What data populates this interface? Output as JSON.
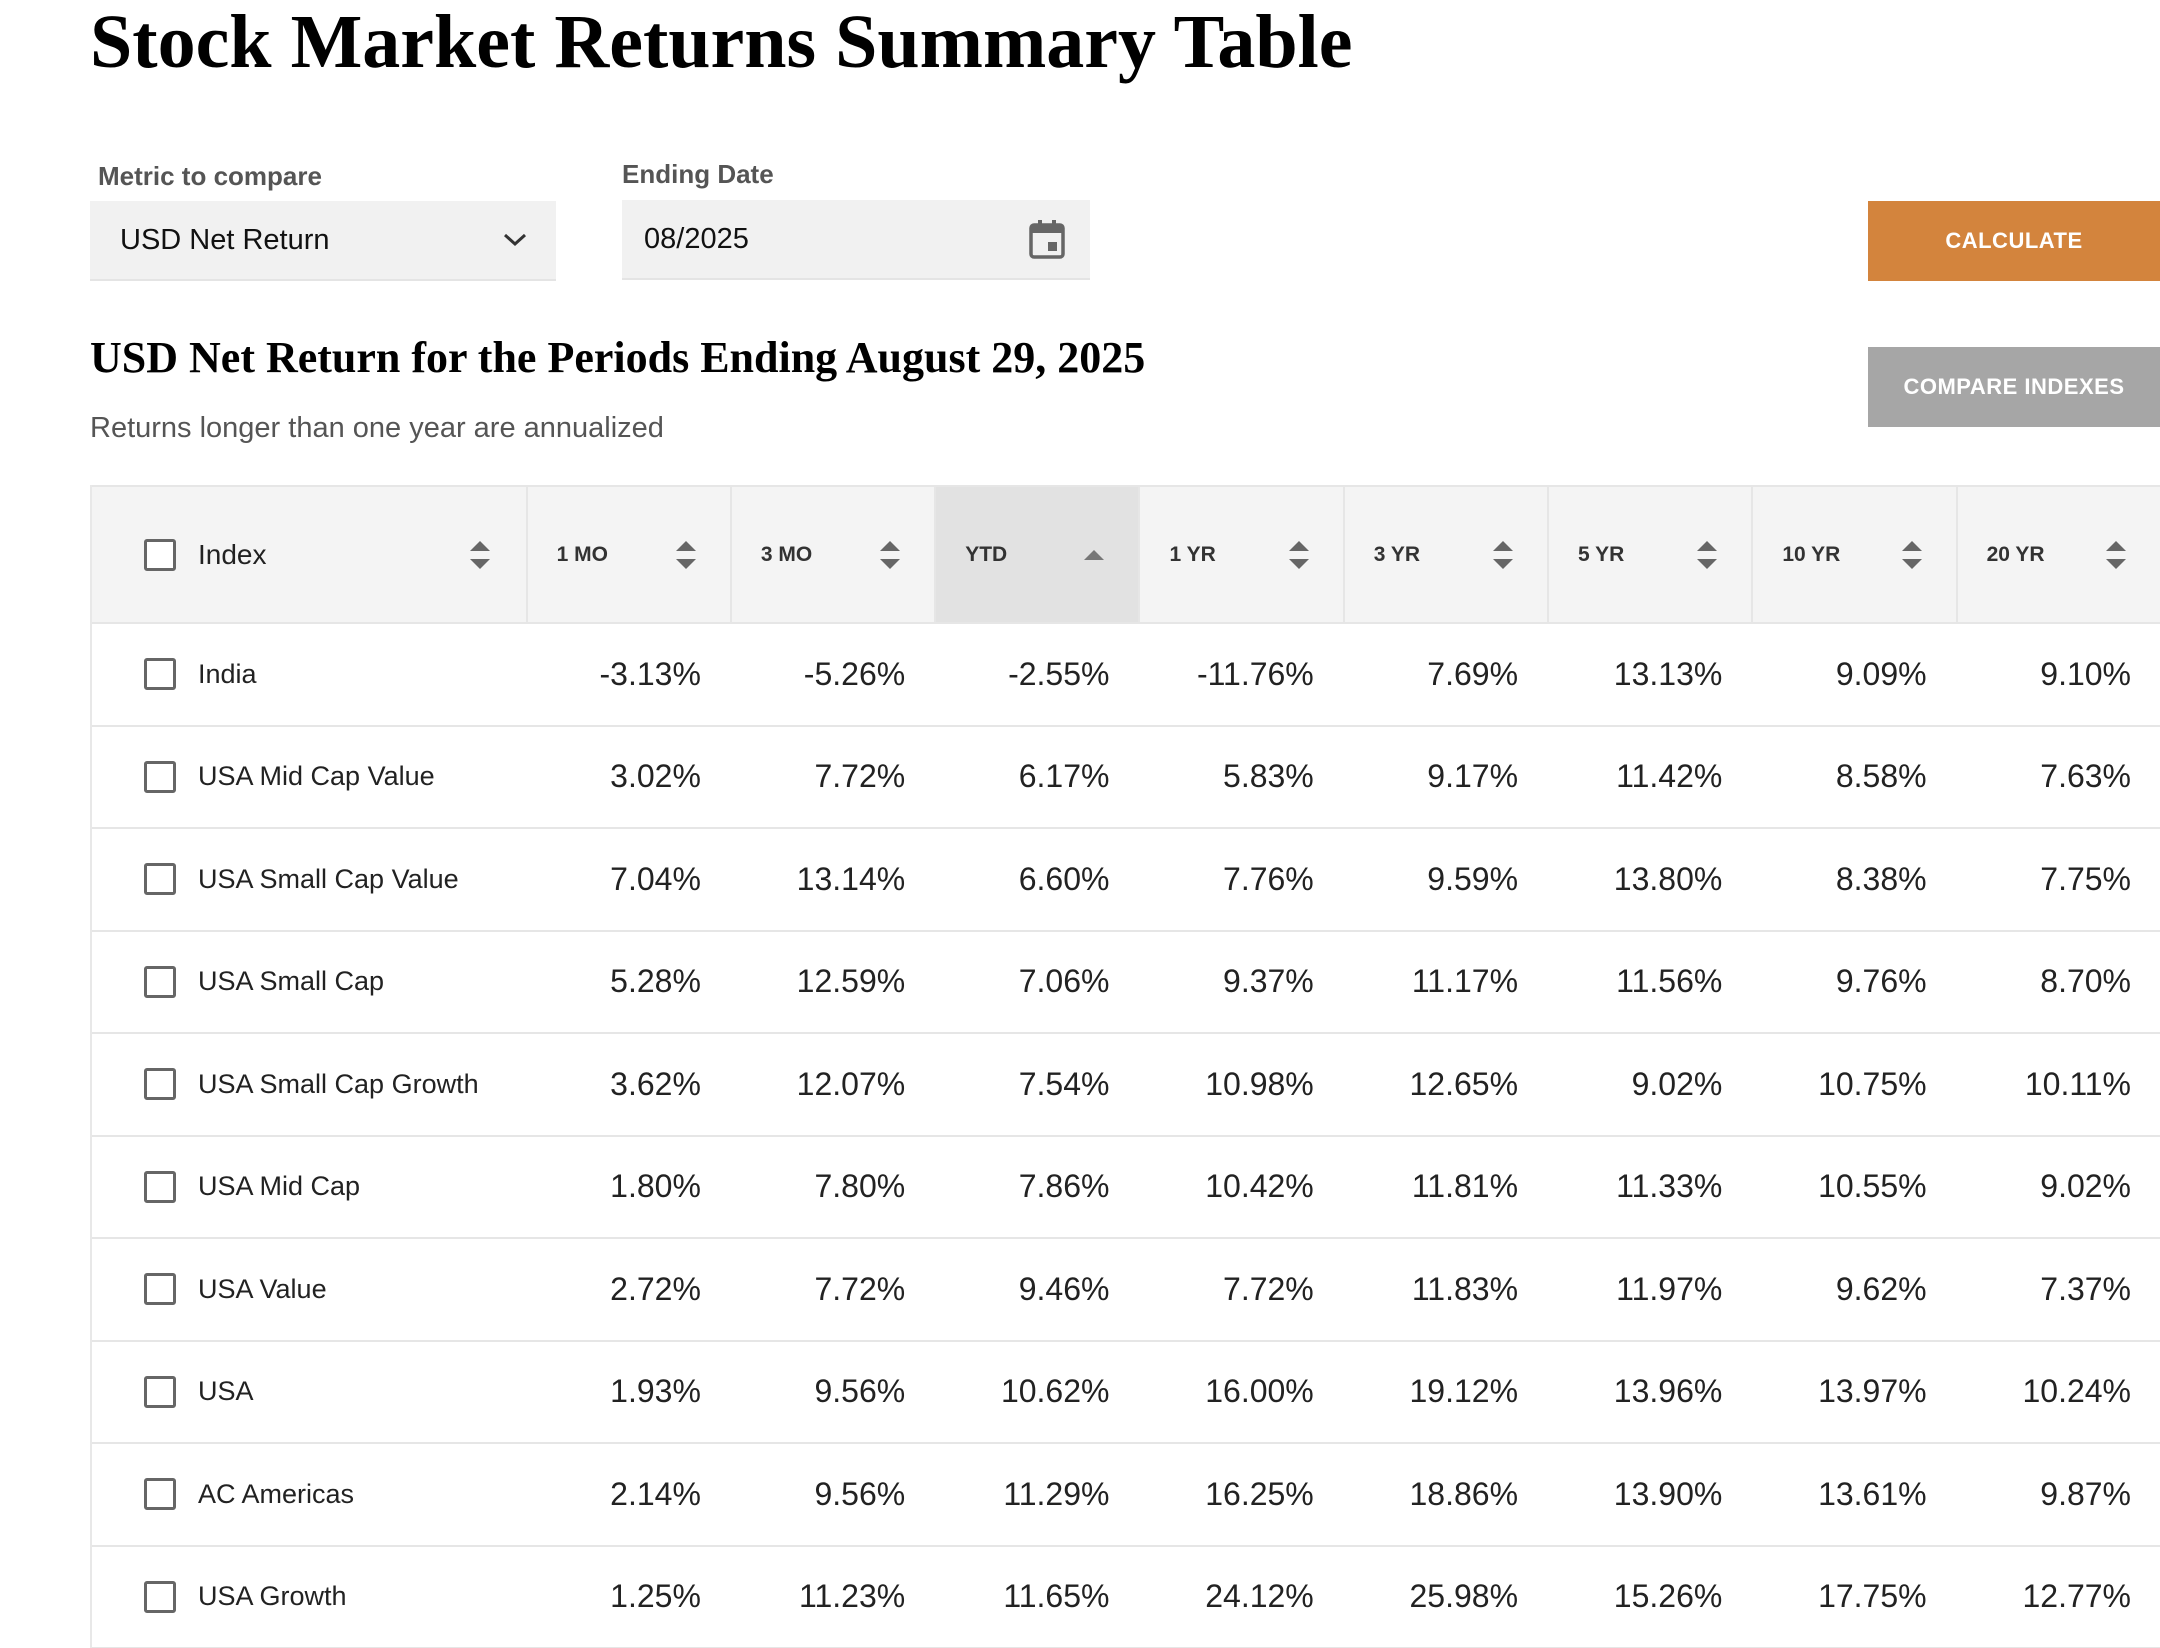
{
  "page": {
    "title": "Stock Market Returns Summary Table"
  },
  "controls": {
    "metric_label": "Metric to compare",
    "metric_value": "USD Net Return",
    "date_label": "Ending Date",
    "date_value": "08/2025",
    "calculate_label": "CALCULATE",
    "compare_label": "COMPARE INDEXES",
    "colors": {
      "calculate": "#d3843d",
      "compare": "#a6a6a6"
    },
    "icons": {
      "dropdown": "chevron-down-icon",
      "date": "calendar-icon"
    }
  },
  "section": {
    "subtitle": "USD Net Return for the Periods Ending August 29, 2025",
    "note": "Returns longer than one year are annualized"
  },
  "table": {
    "sorted_column": "YTD",
    "sort_direction": "ascending",
    "headers": [
      "Index",
      "1 MO",
      "3 MO",
      "YTD",
      "1 YR",
      "3 YR",
      "5 YR",
      "10 YR",
      "20 YR"
    ],
    "rows": [
      {
        "name": "India",
        "values": [
          "-3.13%",
          "-5.26%",
          "-2.55%",
          "-11.76%",
          "7.69%",
          "13.13%",
          "9.09%",
          "9.10%"
        ]
      },
      {
        "name": "USA Mid Cap Value",
        "values": [
          "3.02%",
          "7.72%",
          "6.17%",
          "5.83%",
          "9.17%",
          "11.42%",
          "8.58%",
          "7.63%"
        ]
      },
      {
        "name": "USA Small Cap Value",
        "values": [
          "7.04%",
          "13.14%",
          "6.60%",
          "7.76%",
          "9.59%",
          "13.80%",
          "8.38%",
          "7.75%"
        ]
      },
      {
        "name": "USA Small Cap",
        "values": [
          "5.28%",
          "12.59%",
          "7.06%",
          "9.37%",
          "11.17%",
          "11.56%",
          "9.76%",
          "8.70%"
        ]
      },
      {
        "name": "USA Small Cap Growth",
        "values": [
          "3.62%",
          "12.07%",
          "7.54%",
          "10.98%",
          "12.65%",
          "9.02%",
          "10.75%",
          "10.11%"
        ]
      },
      {
        "name": "USA Mid Cap",
        "values": [
          "1.80%",
          "7.80%",
          "7.86%",
          "10.42%",
          "11.81%",
          "11.33%",
          "10.55%",
          "9.02%"
        ]
      },
      {
        "name": "USA Value",
        "values": [
          "2.72%",
          "7.72%",
          "9.46%",
          "7.72%",
          "11.83%",
          "11.97%",
          "9.62%",
          "7.37%"
        ]
      },
      {
        "name": "USA",
        "values": [
          "1.93%",
          "9.56%",
          "10.62%",
          "16.00%",
          "19.12%",
          "13.96%",
          "13.97%",
          "10.24%"
        ]
      },
      {
        "name": "AC Americas",
        "values": [
          "2.14%",
          "9.56%",
          "11.29%",
          "16.25%",
          "18.86%",
          "13.90%",
          "13.61%",
          "9.87%"
        ]
      },
      {
        "name": "USA Growth",
        "values": [
          "1.25%",
          "11.23%",
          "11.65%",
          "24.12%",
          "25.98%",
          "15.26%",
          "17.75%",
          "12.77%"
        ]
      }
    ]
  }
}
